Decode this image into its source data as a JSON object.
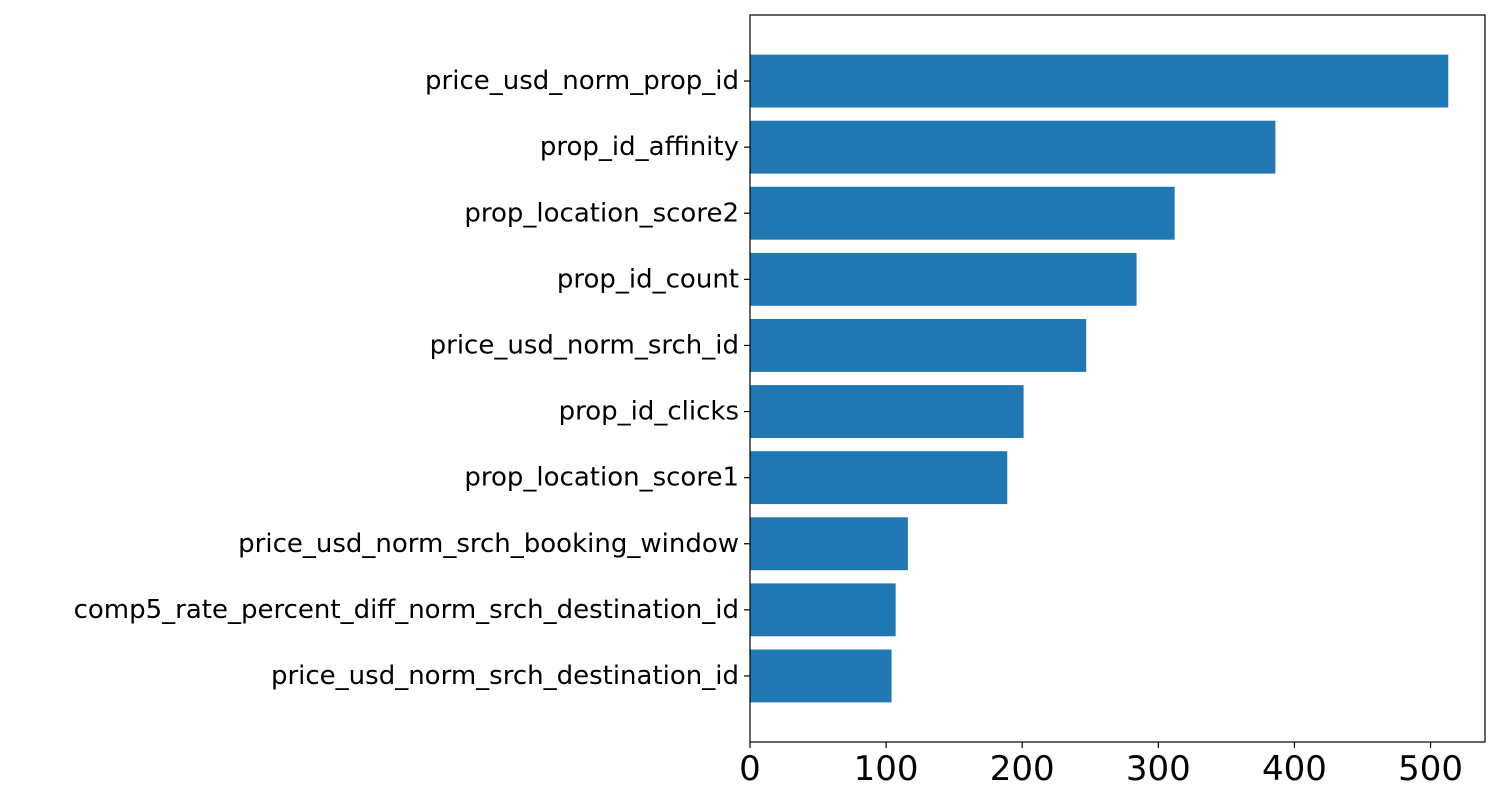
{
  "chart_data": {
    "type": "bar",
    "orientation": "horizontal",
    "categories": [
      "price_usd_norm_prop_id",
      "prop_id_affinity",
      "prop_location_score2",
      "prop_id_count",
      "price_usd_norm_srch_id",
      "prop_id_clicks",
      "prop_location_score1",
      "price_usd_norm_srch_booking_window",
      "comp5_rate_percent_diff_norm_srch_destination_id",
      "price_usd_norm_srch_destination_id"
    ],
    "values": [
      513,
      386,
      312,
      284,
      247,
      201,
      189,
      116,
      107,
      104
    ],
    "xlim": [
      0,
      540
    ],
    "xticks": [
      0,
      100,
      200,
      300,
      400,
      500
    ],
    "title": "",
    "xlabel": "",
    "ylabel": "",
    "grid": false,
    "legend": false,
    "bar_color": "#1f77b4"
  }
}
